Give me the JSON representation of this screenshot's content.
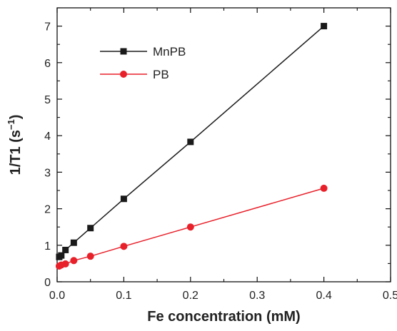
{
  "chart_data": {
    "type": "line",
    "xlabel": "Fe concentration (mM)",
    "ylabel_main": "1/T1 (s",
    "ylabel_sup": "−1",
    "ylabel_close": ")",
    "xlim": [
      0,
      0.5
    ],
    "ylim": [
      0,
      7.5
    ],
    "xticks": [
      "0.0",
      "0.1",
      "0.2",
      "0.3",
      "0.4",
      "0.5"
    ],
    "yticks": [
      "0",
      "1",
      "2",
      "3",
      "4",
      "5",
      "6",
      "7"
    ],
    "legend_position": "top-left",
    "grid": false,
    "series": [
      {
        "name": "MnPB",
        "color": "#1a1a1a",
        "marker": "square",
        "x": [
          0.003125,
          0.00625,
          0.0125,
          0.025,
          0.05,
          0.1,
          0.2,
          0.4
        ],
        "y": [
          0.68,
          0.72,
          0.87,
          1.07,
          1.47,
          2.27,
          3.83,
          7.0
        ]
      },
      {
        "name": "PB",
        "color": "#e8202a",
        "marker": "circle",
        "x": [
          0.003125,
          0.00625,
          0.0125,
          0.025,
          0.05,
          0.1,
          0.2,
          0.4
        ],
        "y": [
          0.43,
          0.46,
          0.49,
          0.58,
          0.7,
          0.97,
          1.5,
          2.56
        ]
      }
    ]
  }
}
